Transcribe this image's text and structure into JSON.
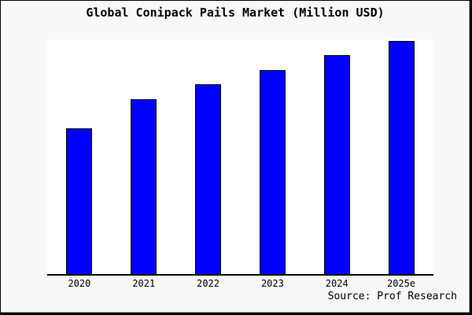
{
  "chart_data": {
    "type": "bar",
    "title": "Global Conipack Pails Market (Million USD)",
    "categories": [
      "2020",
      "2021",
      "2022",
      "2023",
      "2024",
      "2025e"
    ],
    "values": [
      100,
      120,
      130,
      140,
      150,
      160
    ],
    "xlabel": "",
    "ylabel": "",
    "ylim": [
      0,
      161
    ],
    "y_axis_visible": false,
    "grid": false,
    "legend": null,
    "bar_fill_color": "#0000ff",
    "bar_edge_color": "#000000"
  },
  "footer": {
    "source": "Source: Prof Research"
  },
  "colors": {
    "page_bg": "#f8f8f8",
    "plot_bg": "#ffffff",
    "axis": "#000000",
    "title_color": "#000000",
    "frame_border": "#000000"
  }
}
